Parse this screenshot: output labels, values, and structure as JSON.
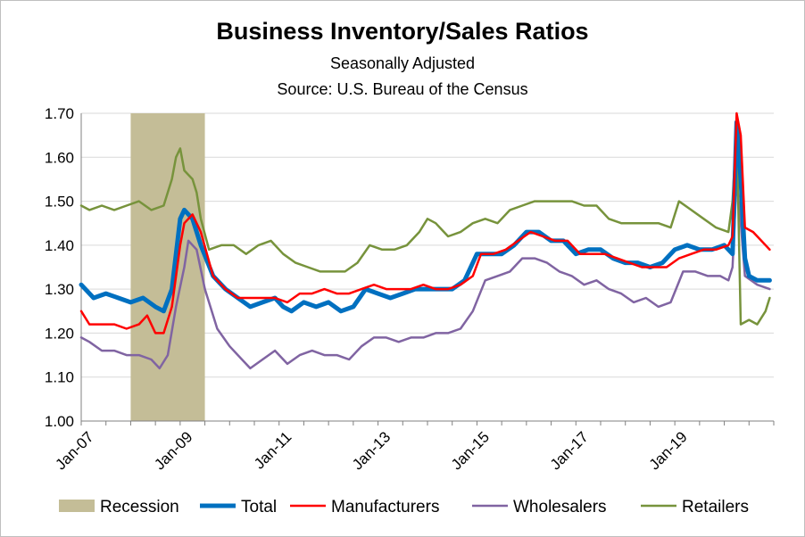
{
  "chart_data": {
    "type": "line",
    "title": "Business Inventory/Sales Ratios",
    "subtitle": "Seasonally Adjusted",
    "source": "Source:  U.S. Bureau of the Census",
    "x_tick_labels": [
      "Jan-07",
      "Jan-09",
      "Jan-11",
      "Jan-13",
      "Jan-15",
      "Jan-17",
      "Jan-19"
    ],
    "y_tick_labels": [
      "1.00",
      "1.10",
      "1.20",
      "1.30",
      "1.40",
      "1.50",
      "1.60",
      "1.70"
    ],
    "ylim": [
      1.0,
      1.7
    ],
    "xlim": [
      "2007-01",
      "2020-12"
    ],
    "grid": "horizontal",
    "legend_position": "bottom",
    "recession": {
      "name": "Recession",
      "start": "2008-01",
      "end": "2009-06",
      "color": "#c4bd97"
    },
    "series": [
      {
        "name": "Total",
        "color": "#0070c0",
        "points": [
          [
            "2007-01",
            1.31
          ],
          [
            "2007-04",
            1.28
          ],
          [
            "2007-07",
            1.29
          ],
          [
            "2007-10",
            1.28
          ],
          [
            "2008-01",
            1.27
          ],
          [
            "2008-04",
            1.28
          ],
          [
            "2008-07",
            1.26
          ],
          [
            "2008-09",
            1.25
          ],
          [
            "2008-11",
            1.3
          ],
          [
            "2009-01",
            1.46
          ],
          [
            "2009-02",
            1.48
          ],
          [
            "2009-04",
            1.46
          ],
          [
            "2009-06",
            1.4
          ],
          [
            "2009-09",
            1.33
          ],
          [
            "2009-12",
            1.3
          ],
          [
            "2010-03",
            1.28
          ],
          [
            "2010-06",
            1.26
          ],
          [
            "2010-09",
            1.27
          ],
          [
            "2010-12",
            1.28
          ],
          [
            "2011-02",
            1.26
          ],
          [
            "2011-04",
            1.25
          ],
          [
            "2011-07",
            1.27
          ],
          [
            "2011-10",
            1.26
          ],
          [
            "2012-01",
            1.27
          ],
          [
            "2012-04",
            1.25
          ],
          [
            "2012-07",
            1.26
          ],
          [
            "2012-10",
            1.3
          ],
          [
            "2013-01",
            1.29
          ],
          [
            "2013-04",
            1.28
          ],
          [
            "2013-07",
            1.29
          ],
          [
            "2013-10",
            1.3
          ],
          [
            "2014-01",
            1.3
          ],
          [
            "2014-04",
            1.3
          ],
          [
            "2014-07",
            1.3
          ],
          [
            "2014-10",
            1.32
          ],
          [
            "2015-01",
            1.38
          ],
          [
            "2015-04",
            1.38
          ],
          [
            "2015-07",
            1.38
          ],
          [
            "2015-10",
            1.4
          ],
          [
            "2016-01",
            1.43
          ],
          [
            "2016-04",
            1.43
          ],
          [
            "2016-07",
            1.41
          ],
          [
            "2016-10",
            1.41
          ],
          [
            "2017-01",
            1.38
          ],
          [
            "2017-04",
            1.39
          ],
          [
            "2017-07",
            1.39
          ],
          [
            "2017-10",
            1.37
          ],
          [
            "2018-01",
            1.36
          ],
          [
            "2018-04",
            1.36
          ],
          [
            "2018-07",
            1.35
          ],
          [
            "2018-10",
            1.36
          ],
          [
            "2019-01",
            1.39
          ],
          [
            "2019-04",
            1.4
          ],
          [
            "2019-07",
            1.39
          ],
          [
            "2019-10",
            1.39
          ],
          [
            "2020-01",
            1.4
          ],
          [
            "2020-02",
            1.39
          ],
          [
            "2020-03",
            1.38
          ],
          [
            "2020-04",
            1.68
          ],
          [
            "2020-05",
            1.55
          ],
          [
            "2020-06",
            1.37
          ],
          [
            "2020-07",
            1.33
          ],
          [
            "2020-09",
            1.32
          ],
          [
            "2020-12",
            1.32
          ]
        ]
      },
      {
        "name": "Manufacturers",
        "color": "#ff0000",
        "points": [
          [
            "2007-01",
            1.25
          ],
          [
            "2007-03",
            1.22
          ],
          [
            "2007-06",
            1.22
          ],
          [
            "2007-09",
            1.22
          ],
          [
            "2007-12",
            1.21
          ],
          [
            "2008-03",
            1.22
          ],
          [
            "2008-05",
            1.24
          ],
          [
            "2008-07",
            1.2
          ],
          [
            "2008-09",
            1.2
          ],
          [
            "2008-11",
            1.26
          ],
          [
            "2009-01",
            1.4
          ],
          [
            "2009-02",
            1.45
          ],
          [
            "2009-04",
            1.47
          ],
          [
            "2009-06",
            1.43
          ],
          [
            "2009-09",
            1.33
          ],
          [
            "2009-12",
            1.3
          ],
          [
            "2010-03",
            1.28
          ],
          [
            "2010-06",
            1.28
          ],
          [
            "2010-09",
            1.28
          ],
          [
            "2010-12",
            1.28
          ],
          [
            "2011-03",
            1.27
          ],
          [
            "2011-06",
            1.29
          ],
          [
            "2011-09",
            1.29
          ],
          [
            "2011-12",
            1.3
          ],
          [
            "2012-03",
            1.29
          ],
          [
            "2012-06",
            1.29
          ],
          [
            "2012-09",
            1.3
          ],
          [
            "2012-12",
            1.31
          ],
          [
            "2013-03",
            1.3
          ],
          [
            "2013-06",
            1.3
          ],
          [
            "2013-09",
            1.3
          ],
          [
            "2013-12",
            1.31
          ],
          [
            "2014-03",
            1.3
          ],
          [
            "2014-06",
            1.3
          ],
          [
            "2014-09",
            1.31
          ],
          [
            "2014-12",
            1.33
          ],
          [
            "2015-02",
            1.38
          ],
          [
            "2015-05",
            1.38
          ],
          [
            "2015-08",
            1.39
          ],
          [
            "2015-11",
            1.41
          ],
          [
            "2016-02",
            1.43
          ],
          [
            "2016-05",
            1.42
          ],
          [
            "2016-08",
            1.41
          ],
          [
            "2016-11",
            1.41
          ],
          [
            "2017-02",
            1.38
          ],
          [
            "2017-05",
            1.38
          ],
          [
            "2017-08",
            1.38
          ],
          [
            "2017-11",
            1.37
          ],
          [
            "2018-02",
            1.36
          ],
          [
            "2018-05",
            1.35
          ],
          [
            "2018-08",
            1.35
          ],
          [
            "2018-11",
            1.35
          ],
          [
            "2019-02",
            1.37
          ],
          [
            "2019-05",
            1.38
          ],
          [
            "2019-08",
            1.39
          ],
          [
            "2019-11",
            1.39
          ],
          [
            "2020-02",
            1.4
          ],
          [
            "2020-03",
            1.42
          ],
          [
            "2020-04",
            1.7
          ],
          [
            "2020-05",
            1.65
          ],
          [
            "2020-06",
            1.44
          ],
          [
            "2020-08",
            1.43
          ],
          [
            "2020-10",
            1.41
          ],
          [
            "2020-11",
            1.4
          ],
          [
            "2020-12",
            1.39
          ]
        ]
      },
      {
        "name": "Wholesalers",
        "color": "#8064a2",
        "points": [
          [
            "2007-01",
            1.19
          ],
          [
            "2007-03",
            1.18
          ],
          [
            "2007-06",
            1.16
          ],
          [
            "2007-09",
            1.16
          ],
          [
            "2007-12",
            1.15
          ],
          [
            "2008-03",
            1.15
          ],
          [
            "2008-06",
            1.14
          ],
          [
            "2008-08",
            1.12
          ],
          [
            "2008-10",
            1.15
          ],
          [
            "2008-12",
            1.26
          ],
          [
            "2009-02",
            1.35
          ],
          [
            "2009-03",
            1.41
          ],
          [
            "2009-05",
            1.39
          ],
          [
            "2009-07",
            1.3
          ],
          [
            "2009-10",
            1.21
          ],
          [
            "2010-01",
            1.17
          ],
          [
            "2010-04",
            1.14
          ],
          [
            "2010-06",
            1.12
          ],
          [
            "2010-09",
            1.14
          ],
          [
            "2010-12",
            1.16
          ],
          [
            "2011-03",
            1.13
          ],
          [
            "2011-06",
            1.15
          ],
          [
            "2011-09",
            1.16
          ],
          [
            "2011-12",
            1.15
          ],
          [
            "2012-03",
            1.15
          ],
          [
            "2012-06",
            1.14
          ],
          [
            "2012-09",
            1.17
          ],
          [
            "2012-12",
            1.19
          ],
          [
            "2013-03",
            1.19
          ],
          [
            "2013-06",
            1.18
          ],
          [
            "2013-09",
            1.19
          ],
          [
            "2013-12",
            1.19
          ],
          [
            "2014-03",
            1.2
          ],
          [
            "2014-06",
            1.2
          ],
          [
            "2014-09",
            1.21
          ],
          [
            "2014-12",
            1.25
          ],
          [
            "2015-03",
            1.32
          ],
          [
            "2015-06",
            1.33
          ],
          [
            "2015-09",
            1.34
          ],
          [
            "2015-12",
            1.37
          ],
          [
            "2016-03",
            1.37
          ],
          [
            "2016-06",
            1.36
          ],
          [
            "2016-09",
            1.34
          ],
          [
            "2016-12",
            1.33
          ],
          [
            "2017-03",
            1.31
          ],
          [
            "2017-06",
            1.32
          ],
          [
            "2017-09",
            1.3
          ],
          [
            "2017-12",
            1.29
          ],
          [
            "2018-03",
            1.27
          ],
          [
            "2018-06",
            1.28
          ],
          [
            "2018-09",
            1.26
          ],
          [
            "2018-12",
            1.27
          ],
          [
            "2019-03",
            1.34
          ],
          [
            "2019-06",
            1.34
          ],
          [
            "2019-09",
            1.33
          ],
          [
            "2019-12",
            1.33
          ],
          [
            "2020-02",
            1.32
          ],
          [
            "2020-03",
            1.35
          ],
          [
            "2020-04",
            1.55
          ],
          [
            "2020-05",
            1.45
          ],
          [
            "2020-06",
            1.33
          ],
          [
            "2020-09",
            1.31
          ],
          [
            "2020-12",
            1.3
          ]
        ]
      },
      {
        "name": "Retailers",
        "color": "#77933c",
        "points": [
          [
            "2007-01",
            1.49
          ],
          [
            "2007-03",
            1.48
          ],
          [
            "2007-06",
            1.49
          ],
          [
            "2007-09",
            1.48
          ],
          [
            "2007-12",
            1.49
          ],
          [
            "2008-03",
            1.5
          ],
          [
            "2008-06",
            1.48
          ],
          [
            "2008-09",
            1.49
          ],
          [
            "2008-11",
            1.55
          ],
          [
            "2008-12",
            1.6
          ],
          [
            "2009-01",
            1.62
          ],
          [
            "2009-02",
            1.57
          ],
          [
            "2009-04",
            1.55
          ],
          [
            "2009-05",
            1.52
          ],
          [
            "2009-06",
            1.46
          ],
          [
            "2009-08",
            1.39
          ],
          [
            "2009-11",
            1.4
          ],
          [
            "2010-02",
            1.4
          ],
          [
            "2010-05",
            1.38
          ],
          [
            "2010-08",
            1.4
          ],
          [
            "2010-11",
            1.41
          ],
          [
            "2011-02",
            1.38
          ],
          [
            "2011-05",
            1.36
          ],
          [
            "2011-08",
            1.35
          ],
          [
            "2011-11",
            1.34
          ],
          [
            "2012-02",
            1.34
          ],
          [
            "2012-05",
            1.34
          ],
          [
            "2012-08",
            1.36
          ],
          [
            "2012-11",
            1.4
          ],
          [
            "2013-02",
            1.39
          ],
          [
            "2013-05",
            1.39
          ],
          [
            "2013-08",
            1.4
          ],
          [
            "2013-11",
            1.43
          ],
          [
            "2014-01",
            1.46
          ],
          [
            "2014-03",
            1.45
          ],
          [
            "2014-06",
            1.42
          ],
          [
            "2014-09",
            1.43
          ],
          [
            "2014-12",
            1.45
          ],
          [
            "2015-03",
            1.46
          ],
          [
            "2015-06",
            1.45
          ],
          [
            "2015-09",
            1.48
          ],
          [
            "2015-12",
            1.49
          ],
          [
            "2016-03",
            1.5
          ],
          [
            "2016-06",
            1.5
          ],
          [
            "2016-09",
            1.5
          ],
          [
            "2016-12",
            1.5
          ],
          [
            "2017-03",
            1.49
          ],
          [
            "2017-06",
            1.49
          ],
          [
            "2017-09",
            1.46
          ],
          [
            "2017-12",
            1.45
          ],
          [
            "2018-03",
            1.45
          ],
          [
            "2018-06",
            1.45
          ],
          [
            "2018-09",
            1.45
          ],
          [
            "2018-12",
            1.44
          ],
          [
            "2019-02",
            1.5
          ],
          [
            "2019-05",
            1.48
          ],
          [
            "2019-08",
            1.46
          ],
          [
            "2019-11",
            1.44
          ],
          [
            "2020-02",
            1.43
          ],
          [
            "2020-03",
            1.5
          ],
          [
            "2020-04",
            1.67
          ],
          [
            "2020-05",
            1.22
          ],
          [
            "2020-07",
            1.23
          ],
          [
            "2020-09",
            1.22
          ],
          [
            "2020-11",
            1.25
          ],
          [
            "2020-12",
            1.28
          ]
        ]
      }
    ]
  }
}
